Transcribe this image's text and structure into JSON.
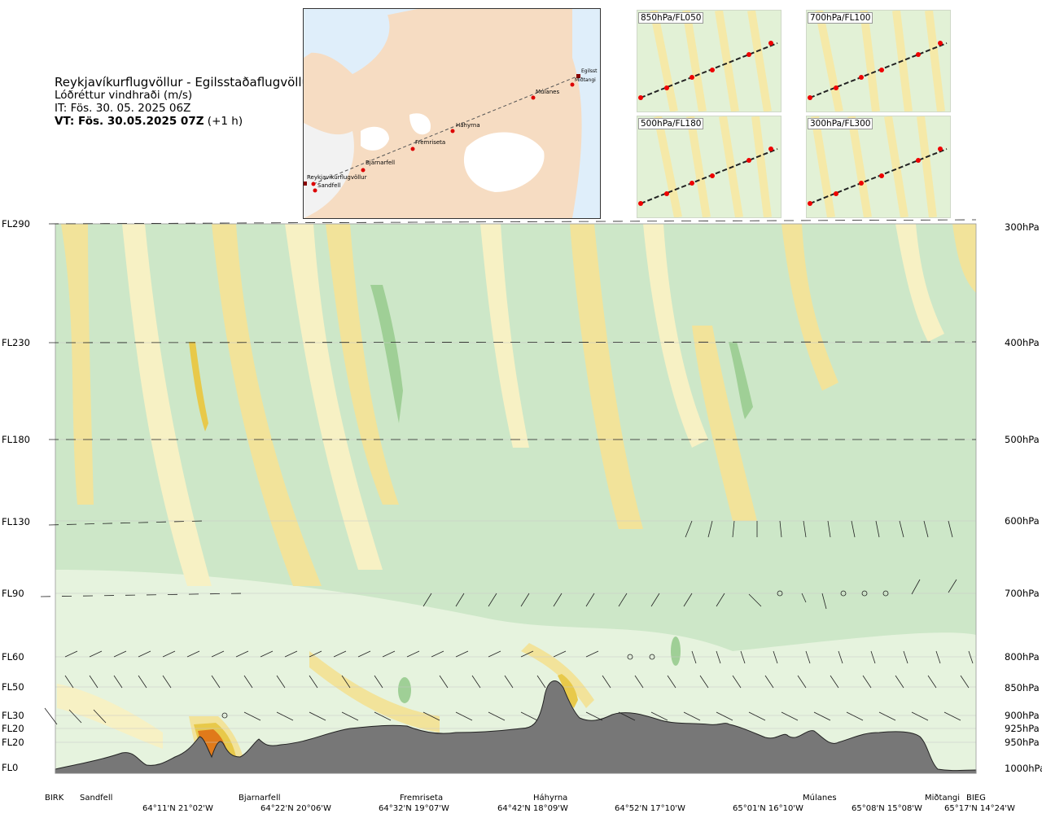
{
  "header": {
    "title": "Reykjavíkurflugvöllur - Egilsstaðaflugvöllur",
    "subtitle": "Lóðréttur vindhraði (m/s)",
    "it": "IT: Fös. 30. 05. 2025 06Z",
    "vt_bold": "VT: Fös. 30.05.2025 07Z",
    "vt_suffix": " (+1 h)"
  },
  "map": {
    "points": [
      "Reykjavíkurflugvöllur",
      "Sandfell",
      "Bjarnarfell",
      "Fremriseta",
      "Háhyrna",
      "Múlanes",
      "Egilsst",
      "Miðtangi"
    ]
  },
  "thumbnails": [
    {
      "label": "850hPa/FL050"
    },
    {
      "label": "700hPa/FL100"
    },
    {
      "label": "500hPa/FL180"
    },
    {
      "label": "300hPa/FL300"
    }
  ],
  "levels_left": [
    "FL290",
    "FL230",
    "FL180",
    "FL130",
    "FL90",
    "FL60",
    "FL50",
    "FL30",
    "FL20",
    "FL20",
    "FL0"
  ],
  "levels_right": [
    "300hPa",
    "400hPa",
    "500hPa",
    "600hPa",
    "700hPa",
    "800hPa",
    "850hPa",
    "900hPa",
    "925hPa",
    "950hPa",
    "1000hPa"
  ],
  "locations": [
    "BIRK",
    "Sandfell",
    "Bjarnarfell",
    "Fremriseta",
    "Háhyrna",
    "Múlanes",
    "Miðtangi",
    "BIEG"
  ],
  "coordinates": [
    "64°11'N 21°02'W",
    "64°22'N 20°06'W",
    "64°32'N 19°07'W",
    "64°42'N 18°09'W",
    "64°52'N 17°10'W",
    "65°01'N 16°10'W",
    "65°08'N 15°08'W",
    "65°17'N 14°24'W"
  ],
  "colors": {
    "updraft_light": "#f7f1c4",
    "updraft": "#f2e39a",
    "updraft_strong": "#e8c94a",
    "updraft_max": "#e07a1a",
    "downdraft_light": "#e6f3de",
    "downdraft": "#cde7c8",
    "downdraft_strong": "#9fcf96",
    "terrain": "#777777"
  }
}
